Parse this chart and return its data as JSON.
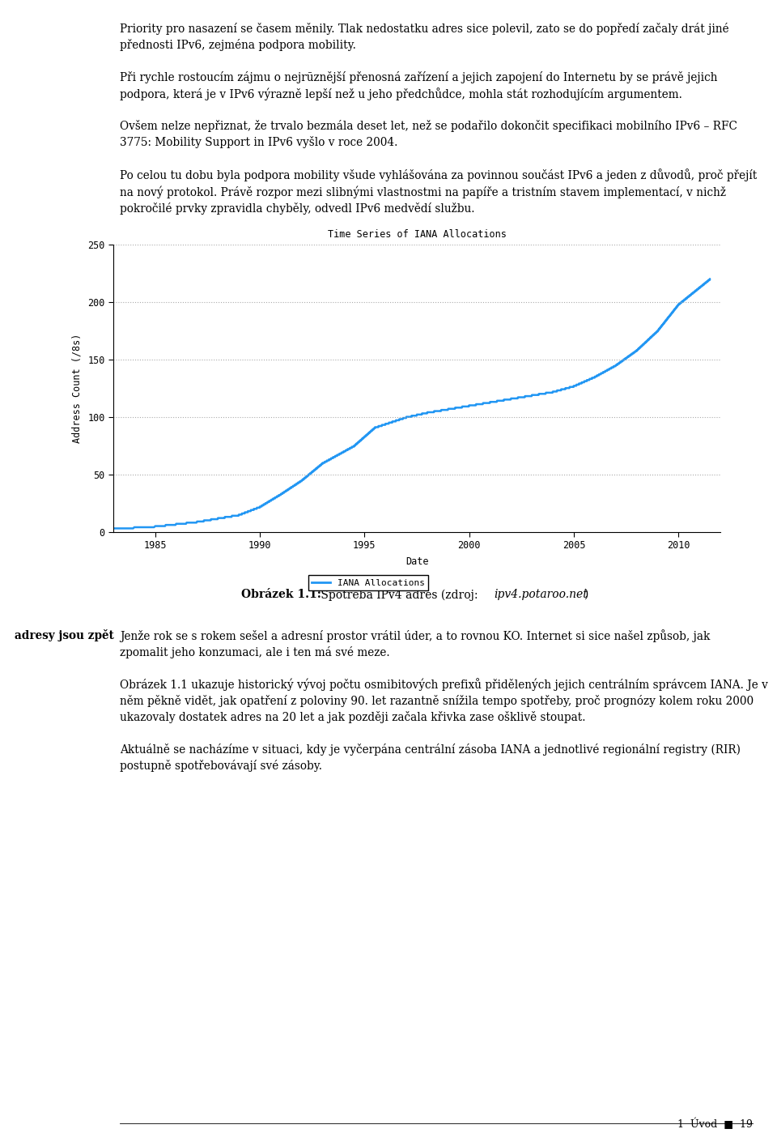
{
  "title": "Time Series of IANA Allocations",
  "xlabel": "Date",
  "ylabel": "Address Count (/8s)",
  "xlim": [
    1983,
    2012
  ],
  "ylim": [
    0,
    250
  ],
  "xticks": [
    1985,
    1990,
    1995,
    2000,
    2005,
    2010
  ],
  "yticks": [
    0,
    50,
    100,
    150,
    200,
    250
  ],
  "line_color": "#2196F3",
  "grid_color": "#aaaaaa",
  "legend_label": "IANA Allocations",
  "bg_color": "#ffffff",
  "fig_width": 9.6,
  "fig_height": 14.15,
  "para1": "Priority pro nasazení se časem měnily. Tlak nedostatku adres sice polevil, zato se do popředí začaly drát jiné přednosti IPv6, zejména podpora mobility.",
  "para2": "Při rychle rostoucím zájmu o nejrūznější přenosná zařízení a jejich zapojení do Internetu by se právě jejich podpora, která je v IPv6 výrazně lepší než u jeho předchůdce, mohla stát rozhodujícím argumentem.",
  "para3a": "Ovšem nelze nepřiznat, že trvalo bezmála deset let, než se podařilo dokončit specifikaci mobilního IPv6 – RFC 3775: ",
  "para3b": "Mobility Support in IPv6",
  "para3c": " vyšlo v roce 2004.",
  "para4": "Po celou tu dobu byla podpora mobility všude vyhlášována za povinnou součást IPv6 a jeden z důvodů, proč přejít na nový protokol. Právě rozpor mezi slibnými vlastnostmi na papíře a tristním stavem implementací, v nichž pokročilé prvky zpravidla chyběly, odvedl IPv6 medvědí službu.",
  "caption_bold": "Obrázek 1.1:",
  "caption_rest": " Spotřeba IPv4 adres (zdroj: ",
  "caption_italic": "ipv4.potaroo.net",
  "caption_end": ")",
  "margin_label": "adresy jsou zpět",
  "body1": "Jenže rok se s rokem sešel a adresní prostor vrátil úder, a to rovnou KO. Internet si sice našel způsob, jak zpomalit jeho konzumaci, ale i ten má své meze.",
  "body2_pre": "Obrázek ",
  "body2_link": "1.1",
  "body2_post": " ukazuje historický vývoj počtu osmibitových prefixů přidělených jejich centrálním správcem IANA. Je v něm pěkně vidět, jak opatření z poloviny 90. let razantně snížila tempo spotřeby, proč prognózy kolem roku 2000 ukazovaly dostatek adres na 20 let a jak později začala křivka zase ošklivě stoupat.",
  "body3": "Aktuálně se nacházíme v situaci, kdy je vyčerpána centrální zásoba IANA a jednotlivé regionální registry (RIR) postupně spotřebovávají své zásoby.",
  "footer_text": "1  Úvod",
  "footer_page": "19",
  "rfc_color": "#00aacc"
}
